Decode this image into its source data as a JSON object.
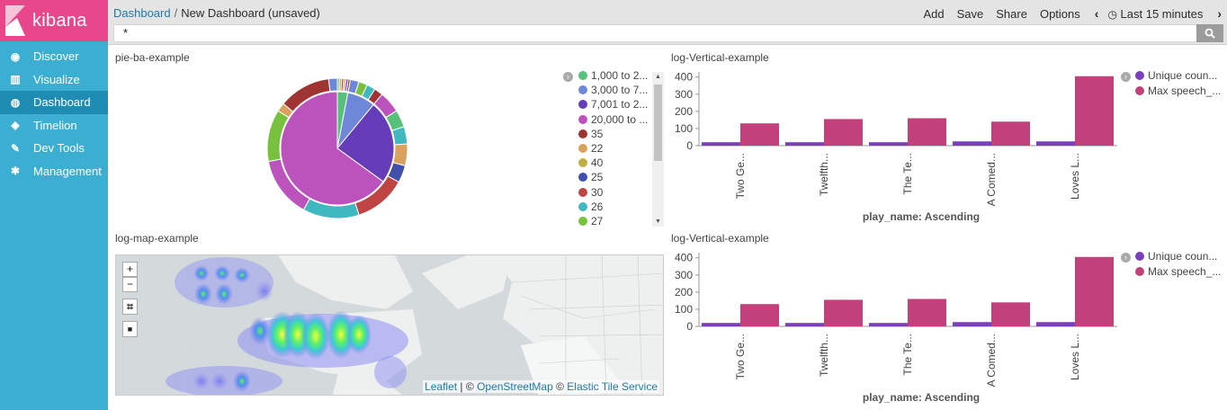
{
  "brand": {
    "name": "kibana"
  },
  "nav": [
    {
      "label": "Discover",
      "icon": "compass-icon",
      "glyph": "◉"
    },
    {
      "label": "Visualize",
      "icon": "bar-chart-icon",
      "glyph": "▥"
    },
    {
      "label": "Dashboard",
      "icon": "dashboard-icon",
      "glyph": "◍"
    },
    {
      "label": "Timelion",
      "icon": "shield-icon",
      "glyph": "◈"
    },
    {
      "label": "Dev Tools",
      "icon": "wrench-icon",
      "glyph": "✎"
    },
    {
      "label": "Management",
      "icon": "gear-icon",
      "glyph": "✱"
    }
  ],
  "breadcrumb": {
    "root": "Dashboard",
    "separator": "/",
    "current": "New Dashboard (unsaved)"
  },
  "menu": {
    "add": "Add",
    "save": "Save",
    "share": "Share",
    "options": "Options",
    "prev": "‹",
    "next": "›",
    "time": "Last 15 minutes"
  },
  "query": {
    "value": "*"
  },
  "pie_panel": {
    "title": "pie-ba-example",
    "legend": [
      {
        "label": "1,000 to 2...",
        "color": "#57c17b"
      },
      {
        "label": "3,000 to 7...",
        "color": "#6f87d8"
      },
      {
        "label": "7,001 to 2...",
        "color": "#663db8"
      },
      {
        "label": "20,000 to ...",
        "color": "#bc52bc"
      },
      {
        "label": "35",
        "color": "#9e3533"
      },
      {
        "label": "22",
        "color": "#daa05d"
      },
      {
        "label": "40",
        "color": "#bfaf40"
      },
      {
        "label": "25",
        "color": "#4050ab"
      },
      {
        "label": "30",
        "color": "#bf4545"
      },
      {
        "label": "26",
        "color": "#3fb8c0"
      },
      {
        "label": "27",
        "color": "#77c13f"
      }
    ]
  },
  "bar_panel_1": {
    "title": "log-Vertical-example"
  },
  "bar_panel_2": {
    "title": "log-Vertical-example"
  },
  "map_panel": {
    "title": "log-map-example",
    "zoom_in": "+",
    "zoom_out": "−",
    "crop": "⌗",
    "square": "■",
    "attribution": {
      "leaflet": "Leaflet",
      "sep1": " | © ",
      "osm": "OpenStreetMap",
      "sep2": " © ",
      "ets": "Elastic Tile Service"
    }
  },
  "chart_data": [
    {
      "type": "pie",
      "title": "pie-ba-example",
      "inner_ring": [
        {
          "label": "1,000 to 2...",
          "value": 3,
          "color": "#57c17b"
        },
        {
          "label": "3,000 to 7...",
          "value": 8,
          "color": "#6f87d8"
        },
        {
          "label": "7,001 to 2...",
          "value": 24,
          "color": "#663db8"
        },
        {
          "label": "20,000 to ...",
          "value": 65,
          "color": "#bc52bc"
        }
      ],
      "outer_ring_colors": [
        "#57c17b",
        "#bfaf40",
        "#bf4545",
        "#daa05d",
        "#663db8",
        "#9e3533",
        "#6f87d8",
        "#77c13f",
        "#3fb8c0",
        "#9e3533",
        "#bc52bc",
        "#57c17b",
        "#3fb8c0",
        "#daa05d",
        "#4050ab",
        "#bf4545",
        "#3fb8c0",
        "#bc52bc",
        "#77c13f",
        "#daa05d",
        "#9e3533",
        "#6f87d8"
      ]
    },
    {
      "type": "bar",
      "title": "log-Vertical-example",
      "categories": [
        "Two Ge...",
        "Twelfth...",
        "The Te...",
        "A Comed...",
        "Loves L..."
      ],
      "series": [
        {
          "name": "Unique coun...",
          "color": "#7a3fbd",
          "values": [
            20,
            20,
            20,
            25,
            25
          ]
        },
        {
          "name": "Max speech_...",
          "color": "#c2417a",
          "values": [
            130,
            155,
            160,
            140,
            405
          ]
        }
      ],
      "yticks": [
        0,
        100,
        200,
        300,
        400
      ],
      "ylim": [
        0,
        430
      ],
      "xlabel": "play_name: Ascending",
      "legend": "top-right"
    },
    {
      "type": "bar",
      "title": "log-Vertical-example",
      "categories": [
        "Two Ge...",
        "Twelfth...",
        "The Te...",
        "A Comed...",
        "Loves L..."
      ],
      "series": [
        {
          "name": "Unique coun...",
          "color": "#7a3fbd",
          "values": [
            20,
            20,
            20,
            25,
            25
          ]
        },
        {
          "name": "Max speech_...",
          "color": "#c2417a",
          "values": [
            130,
            155,
            160,
            140,
            405
          ]
        }
      ],
      "yticks": [
        0,
        100,
        200,
        300,
        400
      ],
      "ylim": [
        0,
        430
      ],
      "xlabel": "play_name: Ascending",
      "legend": "top-right"
    }
  ]
}
